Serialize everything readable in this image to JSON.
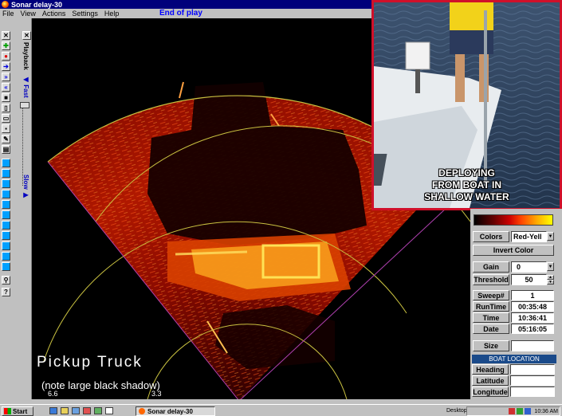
{
  "window": {
    "title": "Sonar delay-30",
    "play_state": "End of play"
  },
  "menu": {
    "items": [
      "File",
      "View",
      "Actions",
      "Settings",
      "Help"
    ]
  },
  "toolbar": {
    "playback_label": "Playback",
    "fast_label": "Fast",
    "slow_label": "Slow"
  },
  "inset": {
    "caption_lines": [
      "DEPLOYING",
      "FROM BOAT IN",
      "SHALLOW WATER"
    ]
  },
  "overlay": {
    "title": "Pickup Truck",
    "note": "(note large black shadow)"
  },
  "range_labels": {
    "outer": "6.6",
    "inner": "3.3"
  },
  "panel": {
    "colors_label": "Colors",
    "colors_value": "Red-Yell",
    "invert_label": "Invert Color",
    "gain_label": "Gain",
    "gain_value": "0",
    "threshold_label": "Threshold",
    "threshold_value": "50",
    "sweep_label": "Sweep#",
    "sweep_value": "1",
    "runtime_label": "RunTime",
    "runtime_value": "00:35:48",
    "time_label": "Time",
    "time_value": "10:36:41",
    "date_label": "Date",
    "date_value": "05:16:05",
    "size_label": "Size",
    "size_value": "",
    "boat_location_label": "BOAT LOCATION",
    "heading_label": "Heading",
    "latitude_label": "Latitude",
    "longitude_label": "Longitude"
  },
  "taskbar": {
    "start_label": "Start",
    "task_label": "Sonar delay-30",
    "desktop_label": "Desktop",
    "clock": "10:36 AM"
  },
  "colors": {
    "title_bar": "#00007b",
    "inset_border": "#d0102a",
    "boat_location_header": "#1a4a8a",
    "range_ring": "#c8c040",
    "sector_edge": "#b040b0"
  }
}
